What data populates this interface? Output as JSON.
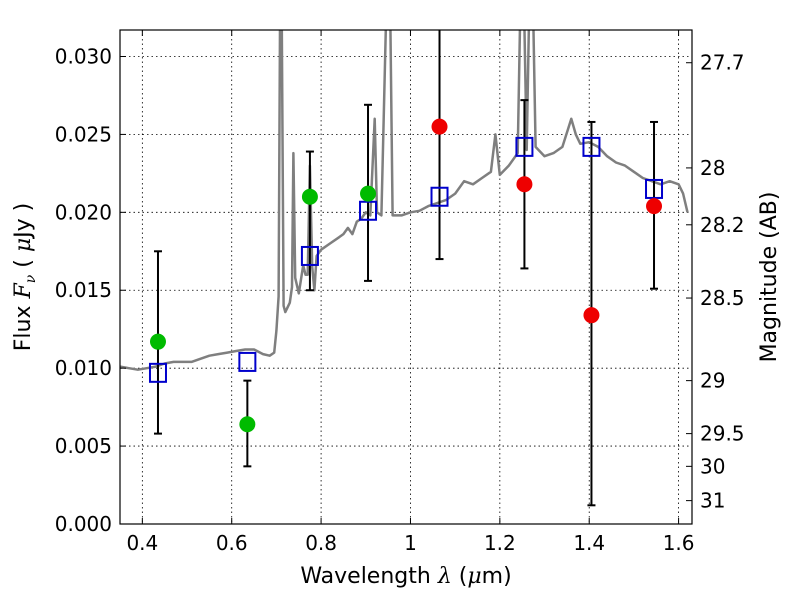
{
  "chart_data": {
    "type": "scatter",
    "xlabel": "Wavelength  λ (μm)",
    "ylabel": "Flux  F_ν  ( μJy )",
    "ylabel_parts": {
      "prefix": "Flux  ",
      "F": "F",
      "nu": "ν",
      "mid": "  ( ",
      "mu": "μ",
      "suffix": "Jy )"
    },
    "xlabel_parts": {
      "prefix": "Wavelength  ",
      "lambda": "λ",
      "mid": " (",
      "mu": "μ",
      "suffix": "m)"
    },
    "y2label": "Magnitude (AB)",
    "xlim": [
      0.35,
      1.63
    ],
    "ylim": [
      0.0,
      0.0317
    ],
    "x_ticks": [
      {
        "value": 0.4,
        "label": "0.4"
      },
      {
        "value": 0.6,
        "label": "0.6"
      },
      {
        "value": 0.8,
        "label": "0.8"
      },
      {
        "value": 1.0,
        "label": "1"
      },
      {
        "value": 1.2,
        "label": "1.2"
      },
      {
        "value": 1.4,
        "label": "1.4"
      },
      {
        "value": 1.6,
        "label": "1.6"
      }
    ],
    "y_ticks": [
      {
        "value": 0.0,
        "label": "0.000"
      },
      {
        "value": 0.005,
        "label": "0.005"
      },
      {
        "value": 0.01,
        "label": "0.010"
      },
      {
        "value": 0.015,
        "label": "0.015"
      },
      {
        "value": 0.02,
        "label": "0.020"
      },
      {
        "value": 0.025,
        "label": "0.025"
      },
      {
        "value": 0.03,
        "label": "0.030"
      }
    ],
    "y2_ticks": [
      {
        "flux": 0.0296,
        "label": "27.7"
      },
      {
        "flux": 0.02285,
        "label": "28"
      },
      {
        "flux": 0.0192,
        "label": "28.2"
      },
      {
        "flux": 0.0145,
        "label": "28.5"
      },
      {
        "flux": 0.0092,
        "label": "29"
      },
      {
        "flux": 0.0058,
        "label": "29.5"
      },
      {
        "flux": 0.0037,
        "label": "30"
      },
      {
        "flux": 0.0015,
        "label": "31"
      }
    ],
    "grid": true,
    "series": [
      {
        "kind": "spectrum",
        "color": "#7f7f7f",
        "points": [
          [
            0.35,
            0.0101
          ],
          [
            0.37,
            0.01
          ],
          [
            0.39,
            0.0099
          ],
          [
            0.41,
            0.01
          ],
          [
            0.43,
            0.0101
          ],
          [
            0.45,
            0.0103
          ],
          [
            0.47,
            0.0104
          ],
          [
            0.49,
            0.0104
          ],
          [
            0.51,
            0.0104
          ],
          [
            0.53,
            0.0106
          ],
          [
            0.55,
            0.0108
          ],
          [
            0.57,
            0.0109
          ],
          [
            0.59,
            0.011
          ],
          [
            0.61,
            0.0111
          ],
          [
            0.63,
            0.0112
          ],
          [
            0.65,
            0.0112
          ],
          [
            0.67,
            0.0109
          ],
          [
            0.685,
            0.0108
          ],
          [
            0.695,
            0.011
          ],
          [
            0.7,
            0.0124
          ],
          [
            0.705,
            0.0146
          ],
          [
            0.708,
            0.032
          ],
          [
            0.712,
            0.032
          ],
          [
            0.716,
            0.014
          ],
          [
            0.72,
            0.0136
          ],
          [
            0.73,
            0.0142
          ],
          [
            0.735,
            0.0152
          ],
          [
            0.738,
            0.0238
          ],
          [
            0.742,
            0.0158
          ],
          [
            0.75,
            0.0148
          ],
          [
            0.76,
            0.0166
          ],
          [
            0.765,
            0.016
          ],
          [
            0.77,
            0.016
          ],
          [
            0.775,
            0.023
          ],
          [
            0.78,
            0.0165
          ],
          [
            0.785,
            0.015
          ],
          [
            0.79,
            0.0172
          ],
          [
            0.8,
            0.0176
          ],
          [
            0.82,
            0.018
          ],
          [
            0.84,
            0.0184
          ],
          [
            0.85,
            0.0186
          ],
          [
            0.86,
            0.019
          ],
          [
            0.87,
            0.0186
          ],
          [
            0.88,
            0.0194
          ],
          [
            0.89,
            0.0196
          ],
          [
            0.9,
            0.02
          ],
          [
            0.91,
            0.0198
          ],
          [
            0.92,
            0.026
          ],
          [
            0.925,
            0.02
          ],
          [
            0.935,
            0.0198
          ],
          [
            0.945,
            0.032
          ],
          [
            0.955,
            0.032
          ],
          [
            0.96,
            0.0198
          ],
          [
            0.98,
            0.0198
          ],
          [
            1.0,
            0.02
          ],
          [
            1.02,
            0.0201
          ],
          [
            1.04,
            0.0204
          ],
          [
            1.06,
            0.0206
          ],
          [
            1.08,
            0.0208
          ],
          [
            1.1,
            0.0212
          ],
          [
            1.12,
            0.022
          ],
          [
            1.14,
            0.0218
          ],
          [
            1.16,
            0.0222
          ],
          [
            1.18,
            0.0226
          ],
          [
            1.19,
            0.025
          ],
          [
            1.2,
            0.0224
          ],
          [
            1.22,
            0.023
          ],
          [
            1.24,
            0.0238
          ],
          [
            1.245,
            0.032
          ],
          [
            1.255,
            0.032
          ],
          [
            1.26,
            0.024
          ],
          [
            1.265,
            0.032
          ],
          [
            1.275,
            0.032
          ],
          [
            1.28,
            0.0242
          ],
          [
            1.3,
            0.0236
          ],
          [
            1.32,
            0.0238
          ],
          [
            1.34,
            0.0242
          ],
          [
            1.36,
            0.026
          ],
          [
            1.37,
            0.025
          ],
          [
            1.38,
            0.0244
          ],
          [
            1.4,
            0.0245
          ],
          [
            1.42,
            0.0242
          ],
          [
            1.44,
            0.0236
          ],
          [
            1.46,
            0.0232
          ],
          [
            1.48,
            0.023
          ],
          [
            1.5,
            0.0226
          ],
          [
            1.52,
            0.0222
          ],
          [
            1.54,
            0.022
          ],
          [
            1.56,
            0.0218
          ],
          [
            1.58,
            0.022
          ],
          [
            1.6,
            0.0218
          ],
          [
            1.61,
            0.0212
          ],
          [
            1.62,
            0.02
          ]
        ]
      },
      {
        "kind": "model",
        "color": "#0000cc",
        "points": [
          [
            0.435,
            0.0097
          ],
          [
            0.635,
            0.0104
          ],
          [
            0.775,
            0.0172
          ],
          [
            0.905,
            0.0201
          ],
          [
            1.065,
            0.021
          ],
          [
            1.255,
            0.0242
          ],
          [
            1.405,
            0.0242
          ],
          [
            1.545,
            0.0215
          ]
        ]
      },
      {
        "kind": "observed",
        "color": "#00bb00",
        "points": [
          {
            "x": 0.435,
            "y": 0.0117,
            "err_low": 0.0058,
            "err_high": 0.0175
          },
          {
            "x": 0.635,
            "y": 0.0064,
            "err_low": 0.0037,
            "err_high": 0.0092
          },
          {
            "x": 0.775,
            "y": 0.021,
            "err_low": 0.015,
            "err_high": 0.0239
          },
          {
            "x": 0.905,
            "y": 0.0212,
            "err_low": 0.0156,
            "err_high": 0.0269
          }
        ]
      },
      {
        "kind": "observed",
        "color": "#ee0000",
        "points": [
          {
            "x": 1.065,
            "y": 0.0255,
            "err_low": 0.017,
            "err_high": 0.033
          },
          {
            "x": 1.255,
            "y": 0.0218,
            "err_low": 0.0164,
            "err_high": 0.0272
          },
          {
            "x": 1.405,
            "y": 0.0134,
            "err_low": 0.0012,
            "err_high": 0.0258
          },
          {
            "x": 1.545,
            "y": 0.0204,
            "err_low": 0.0151,
            "err_high": 0.0258
          }
        ]
      }
    ]
  }
}
